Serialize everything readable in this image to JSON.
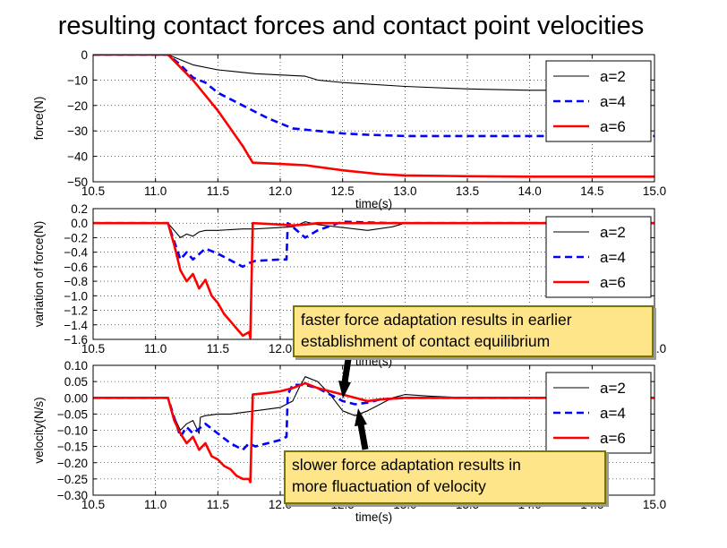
{
  "title": "resulting contact forces and contact point velocities",
  "annotations": [
    {
      "lines": [
        "faster force adaptation results in earlier",
        "establishment of contact equilibrium"
      ]
    },
    {
      "lines": [
        "slower force adaptation results in",
        "more fluactuation of velocity"
      ]
    }
  ],
  "colors": {
    "a2": "#000000",
    "a4": "#0000ff",
    "a6": "#ff0000",
    "callout_fill": "#ffe58a",
    "callout_border": "#7a7400"
  },
  "chart_data": [
    {
      "type": "line",
      "xlabel": "time(s)",
      "ylabel": "force(N)",
      "xlim": [
        10.5,
        15.0
      ],
      "ylim": [
        -50,
        0
      ],
      "xticks": [
        "10.5",
        "11.0",
        "11.5",
        "12.0",
        "12.5",
        "13.0",
        "13.5",
        "14.0",
        "14.5",
        "15.0"
      ],
      "yticks": [
        "0",
        "−10",
        "−20",
        "−30",
        "−40",
        "−50"
      ],
      "grid": true,
      "legend": "top-right",
      "series": [
        {
          "name": "a=2",
          "style": "solid-thin",
          "x": [
            10.5,
            11.1,
            11.2,
            11.3,
            11.5,
            11.8,
            12.0,
            12.2,
            12.3,
            12.5,
            13.0,
            13.5,
            14.0,
            15.0
          ],
          "y": [
            0,
            0,
            -2,
            -4,
            -6,
            -7.5,
            -8,
            -8.5,
            -10,
            -11,
            -12.5,
            -13.5,
            -14,
            -14
          ]
        },
        {
          "name": "a=4",
          "style": "dashed",
          "x": [
            10.5,
            11.1,
            11.2,
            11.3,
            11.4,
            11.5,
            11.7,
            11.9,
            12.1,
            12.3,
            12.5,
            12.7,
            13.0,
            14.0,
            15.0
          ],
          "y": [
            0,
            0,
            -4,
            -9,
            -11,
            -15,
            -20,
            -25,
            -29,
            -30,
            -31,
            -31.5,
            -32,
            -32,
            -32
          ]
        },
        {
          "name": "a=6",
          "style": "solid-thick",
          "x": [
            10.5,
            11.1,
            11.2,
            11.3,
            11.4,
            11.5,
            11.6,
            11.7,
            11.78,
            12.0,
            12.2,
            12.5,
            12.8,
            13.0,
            13.5,
            14.0,
            15.0
          ],
          "y": [
            0,
            0,
            -5,
            -10,
            -16,
            -22,
            -29,
            -36,
            -42.5,
            -43,
            -43.5,
            -45.5,
            -47,
            -47.5,
            -47.8,
            -48,
            -48
          ]
        }
      ]
    },
    {
      "type": "line",
      "xlabel": "time(s)",
      "ylabel": "variation of force(N)",
      "xlim": [
        10.5,
        15.0
      ],
      "ylim": [
        -1.6,
        0.2
      ],
      "xticks": [
        "10.5",
        "11.0",
        "11.5",
        "12.0",
        "12.5",
        "13.0",
        "13.5",
        "14.0",
        "14.5",
        "15.0"
      ],
      "yticks": [
        "0.2",
        "0.0",
        "−0.2",
        "−0.4",
        "−0.6",
        "−0.8",
        "−1.0",
        "−1.2",
        "−1.4",
        "−1.6"
      ],
      "grid": true,
      "legend": "top-right",
      "series": [
        {
          "name": "a=2",
          "style": "solid-thin",
          "x": [
            10.5,
            11.1,
            11.15,
            11.2,
            11.25,
            11.3,
            11.35,
            11.4,
            11.5,
            11.7,
            11.8,
            12.0,
            12.1,
            12.15,
            12.2,
            12.3,
            12.5,
            12.7,
            12.9,
            13.0,
            15.0
          ],
          "y": [
            0,
            0,
            -0.1,
            -0.2,
            -0.15,
            -0.18,
            -0.12,
            -0.1,
            -0.1,
            -0.08,
            -0.08,
            -0.06,
            -0.05,
            -0.02,
            0.02,
            -0.02,
            -0.06,
            -0.1,
            -0.05,
            0,
            0
          ]
        },
        {
          "name": "a=4",
          "style": "dashed",
          "x": [
            10.5,
            11.1,
            11.2,
            11.25,
            11.3,
            11.4,
            11.5,
            11.7,
            11.75,
            11.8,
            12.0,
            12.05,
            12.06,
            12.1,
            12.2,
            12.3,
            12.5,
            12.7,
            12.9,
            15.0
          ],
          "y": [
            0,
            0,
            -0.5,
            -0.4,
            -0.5,
            -0.35,
            -0.42,
            -0.6,
            -0.55,
            -0.52,
            -0.5,
            -0.5,
            0,
            -0.05,
            -0.2,
            -0.1,
            0.02,
            0.01,
            0,
            0
          ]
        },
        {
          "name": "a=6",
          "style": "solid-thick",
          "x": [
            10.5,
            11.1,
            11.15,
            11.2,
            11.25,
            11.3,
            11.35,
            11.4,
            11.45,
            11.5,
            11.55,
            11.6,
            11.65,
            11.7,
            11.75,
            11.76,
            11.78,
            11.9,
            12.0,
            12.1,
            12.2,
            12.3,
            12.5,
            15.0
          ],
          "y": [
            0,
            0,
            -0.3,
            -0.65,
            -0.8,
            -0.7,
            -0.9,
            -0.78,
            -1.0,
            -1.1,
            -1.25,
            -1.35,
            -1.45,
            -1.55,
            -1.5,
            -1.58,
            0,
            -0.01,
            -0.02,
            -0.03,
            -0.02,
            0,
            0,
            0
          ]
        }
      ]
    },
    {
      "type": "line",
      "xlabel": "time(s)",
      "ylabel": "velocity(N/s)",
      "xlim": [
        10.5,
        15.0
      ],
      "ylim": [
        -0.3,
        0.1
      ],
      "xticks": [
        "10.5",
        "11.0",
        "11.5",
        "12.0",
        "12.5",
        "13.0",
        "13.5",
        "14.0",
        "14.5",
        "15.0"
      ],
      "yticks": [
        "0.10",
        "0.05",
        "0.00",
        "−0.05",
        "−0.10",
        "−0.15",
        "−0.20",
        "−0.25",
        "−0.30"
      ],
      "grid": true,
      "legend": "top-right",
      "series": [
        {
          "name": "a=2",
          "style": "solid-thin",
          "x": [
            10.5,
            11.1,
            11.15,
            11.2,
            11.25,
            11.3,
            11.35,
            11.36,
            11.4,
            11.5,
            11.6,
            11.7,
            11.8,
            11.9,
            12.0,
            12.1,
            12.15,
            12.2,
            12.3,
            12.4,
            12.5,
            12.6,
            12.7,
            12.8,
            12.9,
            13.0,
            13.2,
            13.5,
            14.0,
            15.0
          ],
          "y": [
            0,
            0,
            -0.06,
            -0.1,
            -0.08,
            -0.07,
            -0.11,
            -0.06,
            -0.055,
            -0.05,
            -0.05,
            -0.045,
            -0.04,
            -0.035,
            -0.03,
            -0.01,
            0.03,
            0.065,
            0.05,
            0.01,
            -0.04,
            -0.055,
            -0.04,
            -0.02,
            0.0,
            0.01,
            0.005,
            0,
            0,
            0
          ]
        },
        {
          "name": "a=4",
          "style": "dashed",
          "x": [
            10.5,
            11.1,
            11.2,
            11.25,
            11.3,
            11.4,
            11.5,
            11.6,
            11.7,
            11.75,
            11.8,
            12.0,
            12.05,
            12.06,
            12.1,
            12.2,
            12.3,
            12.4,
            12.5,
            12.6,
            12.7,
            12.8,
            13.0,
            15.0
          ],
          "y": [
            0,
            0,
            -0.12,
            -0.09,
            -0.11,
            -0.08,
            -0.11,
            -0.14,
            -0.16,
            -0.14,
            -0.15,
            -0.13,
            -0.12,
            0.01,
            0.04,
            0.04,
            0.03,
            0.01,
            -0.01,
            -0.02,
            -0.015,
            -0.005,
            0,
            0
          ]
        },
        {
          "name": "a=6",
          "style": "solid-thick",
          "x": [
            10.5,
            11.1,
            11.15,
            11.2,
            11.25,
            11.3,
            11.35,
            11.4,
            11.45,
            11.5,
            11.55,
            11.6,
            11.65,
            11.7,
            11.75,
            11.76,
            11.78,
            11.9,
            12.0,
            12.1,
            12.2,
            12.3,
            12.4,
            12.5,
            12.6,
            12.7,
            12.8,
            13.0,
            15.0
          ],
          "y": [
            0,
            0,
            -0.07,
            -0.11,
            -0.14,
            -0.12,
            -0.16,
            -0.14,
            -0.18,
            -0.19,
            -0.21,
            -0.22,
            -0.24,
            -0.25,
            -0.25,
            -0.26,
            0.01,
            0.015,
            0.02,
            0.03,
            0.045,
            0.03,
            0.02,
            0.01,
            0.0,
            -0.01,
            -0.005,
            0,
            0
          ]
        }
      ]
    }
  ]
}
